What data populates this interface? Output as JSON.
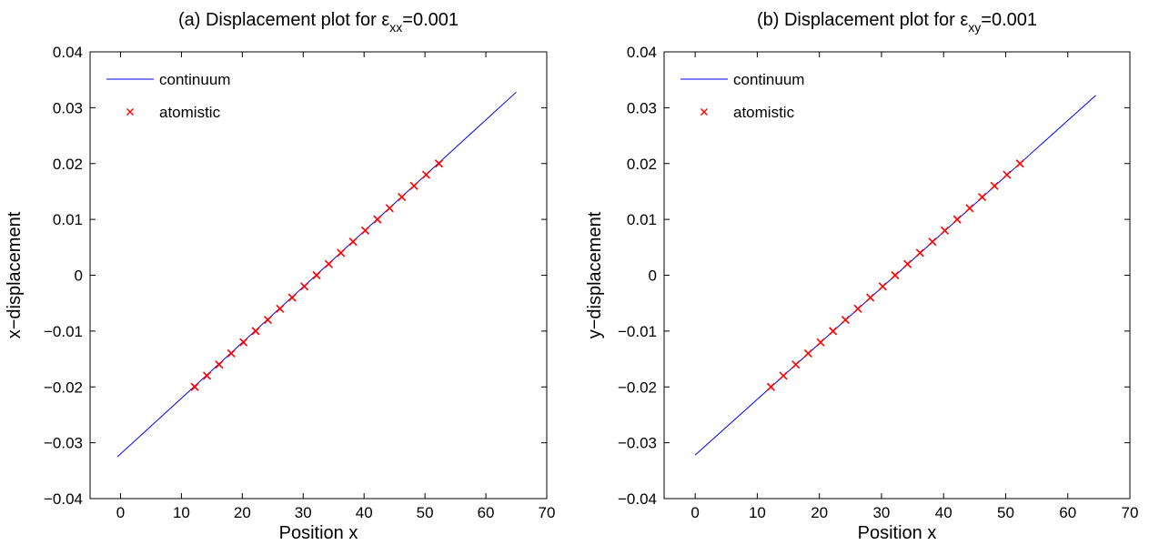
{
  "figure": {
    "background": "#ffffff",
    "line_color": "#0000ff",
    "marker_color": "#ff0000"
  },
  "chart_data": [
    {
      "type": "line",
      "title": {
        "prefix": "(a) Displacement plot for ε",
        "subscript": "xx",
        "suffix": "=0.001"
      },
      "xlabel": "Position x",
      "ylabel": "x−displacement",
      "xlim": [
        -5,
        70
      ],
      "ylim": [
        -0.04,
        0.04
      ],
      "xticks": [
        0,
        10,
        20,
        30,
        40,
        50,
        60,
        70
      ],
      "xtick_labels": [
        "0",
        "10",
        "20",
        "30",
        "40",
        "50",
        "60",
        "70"
      ],
      "yticks": [
        -0.04,
        -0.03,
        -0.02,
        -0.01,
        0,
        0.01,
        0.02,
        0.03,
        0.04
      ],
      "ytick_labels": [
        "−0.04",
        "−0.03",
        "−0.02",
        "−0.01",
        "0",
        "0.01",
        "0.02",
        "0.03",
        "0.04"
      ],
      "grid": false,
      "legend": {
        "placement": "top-left",
        "entries": [
          "continuum",
          "atomistic"
        ]
      },
      "series": [
        {
          "name": "continuum",
          "style": "line",
          "color": "#0000ff",
          "x": [
            -0.5,
            65
          ],
          "y": [
            -0.0325,
            0.0328
          ]
        },
        {
          "name": "atomistic",
          "style": "x-marker",
          "color": "#ff0000",
          "x": [
            12.2,
            14.2,
            16.2,
            18.2,
            20.2,
            22.2,
            24.2,
            26.2,
            28.2,
            30.2,
            32.2,
            34.2,
            36.2,
            38.2,
            40.2,
            42.2,
            44.2,
            46.2,
            48.2,
            50.2,
            52.3
          ],
          "y": [
            -0.02,
            -0.018,
            -0.016,
            -0.014,
            -0.012,
            -0.01,
            -0.008,
            -0.006,
            -0.004,
            -0.002,
            0.0,
            0.002,
            0.004,
            0.006,
            0.008,
            0.01,
            0.012,
            0.014,
            0.016,
            0.018,
            0.02
          ]
        }
      ]
    },
    {
      "type": "line",
      "title": {
        "prefix": "(b) Displacement plot for ε",
        "subscript": "xy",
        "suffix": "=0.001"
      },
      "xlabel": "Position x",
      "ylabel": "y−displacement",
      "xlim": [
        -5,
        70
      ],
      "ylim": [
        -0.04,
        0.04
      ],
      "xticks": [
        0,
        10,
        20,
        30,
        40,
        50,
        60,
        70
      ],
      "xtick_labels": [
        "0",
        "10",
        "20",
        "30",
        "40",
        "50",
        "60",
        "70"
      ],
      "yticks": [
        -0.04,
        -0.03,
        -0.02,
        -0.01,
        0,
        0.01,
        0.02,
        0.03,
        0.04
      ],
      "ytick_labels": [
        "−0.04",
        "−0.03",
        "−0.02",
        "−0.01",
        "0",
        "0.01",
        "0.02",
        "0.03",
        "0.04"
      ],
      "grid": false,
      "legend": {
        "placement": "top-left",
        "entries": [
          "continuum",
          "atomistic"
        ]
      },
      "series": [
        {
          "name": "continuum",
          "style": "line",
          "color": "#0000ff",
          "x": [
            0,
            64.5
          ],
          "y": [
            -0.0322,
            0.0322
          ]
        },
        {
          "name": "atomistic",
          "style": "x-marker",
          "color": "#ff0000",
          "x": [
            12.2,
            14.2,
            16.2,
            18.2,
            20.2,
            22.2,
            24.2,
            26.2,
            28.2,
            30.2,
            32.2,
            34.2,
            36.2,
            38.2,
            40.2,
            42.2,
            44.2,
            46.2,
            48.2,
            50.2,
            52.3
          ],
          "y": [
            -0.02,
            -0.018,
            -0.016,
            -0.014,
            -0.012,
            -0.01,
            -0.008,
            -0.006,
            -0.004,
            -0.002,
            0.0,
            0.002,
            0.004,
            0.006,
            0.008,
            0.01,
            0.012,
            0.014,
            0.016,
            0.018,
            0.02
          ]
        }
      ]
    }
  ]
}
